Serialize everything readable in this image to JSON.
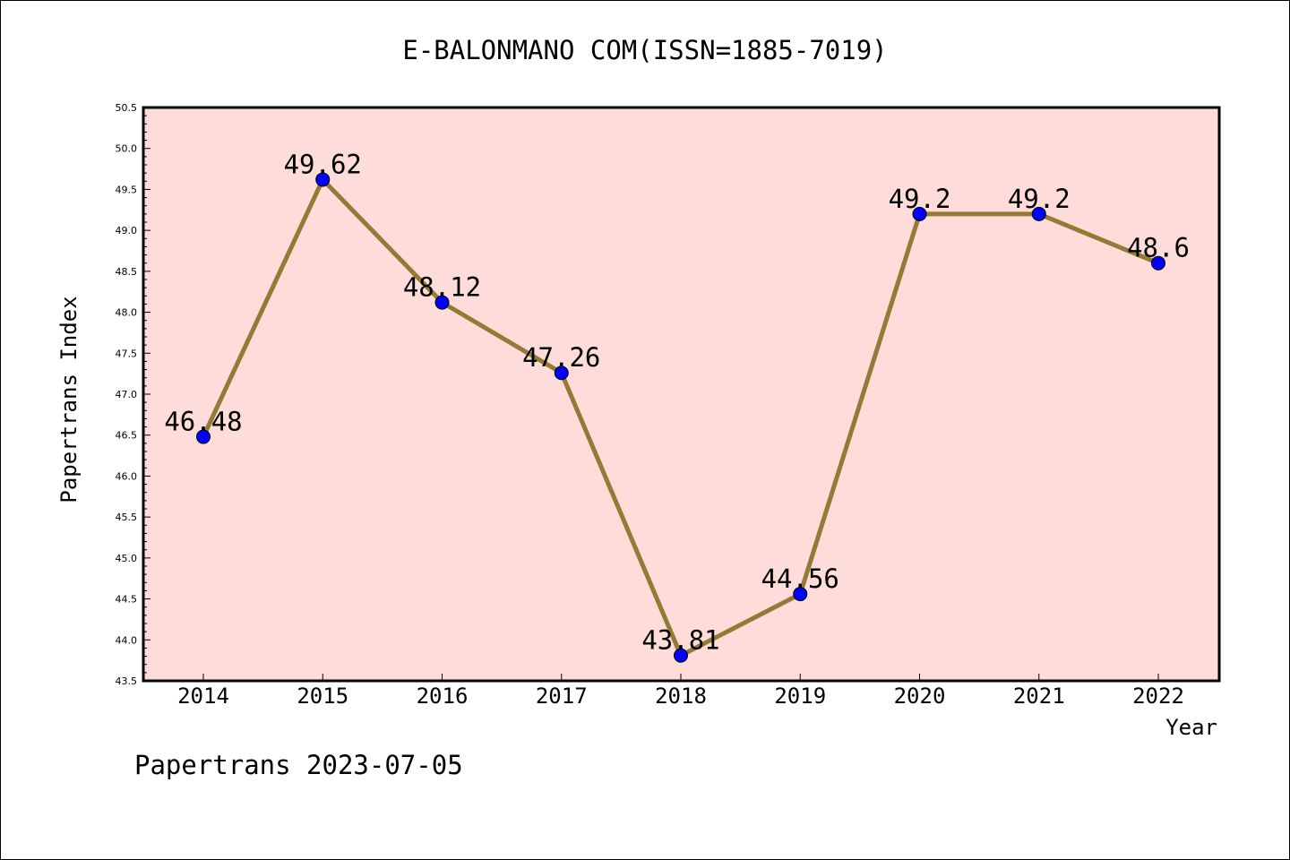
{
  "chart_data": {
    "type": "line",
    "title": "E-BALONMANO COM(ISSN=1885-7019)",
    "xlabel": "Year",
    "ylabel": "Papertrans Index",
    "footer": "Papertrans 2023-07-05",
    "categories": [
      "2014",
      "2015",
      "2016",
      "2017",
      "2018",
      "2019",
      "2020",
      "2021",
      "2022"
    ],
    "series": [
      {
        "values": [
          46.48,
          49.62,
          48.12,
          47.26,
          43.81,
          44.56,
          49.2,
          49.2,
          48.6
        ],
        "labels": [
          "46.48",
          "49.62",
          "48.12",
          "47.26",
          "43.81",
          "44.56",
          "49.2",
          "49.2",
          "48.6"
        ]
      }
    ],
    "ylim": [
      43.5,
      50.5
    ],
    "y_major_step": 0.5,
    "y_tick_labels": [
      "43.5",
      "44.0",
      "44.5",
      "45.0",
      "45.5",
      "46.0",
      "46.5",
      "47.0",
      "47.5",
      "48.0",
      "48.5",
      "49.0",
      "49.5",
      "50.0",
      "50.5"
    ],
    "grid": false,
    "legend": "none",
    "colors": {
      "plot_background": "#fddcda",
      "line": "#957a35",
      "marker": "#0000ff"
    }
  }
}
